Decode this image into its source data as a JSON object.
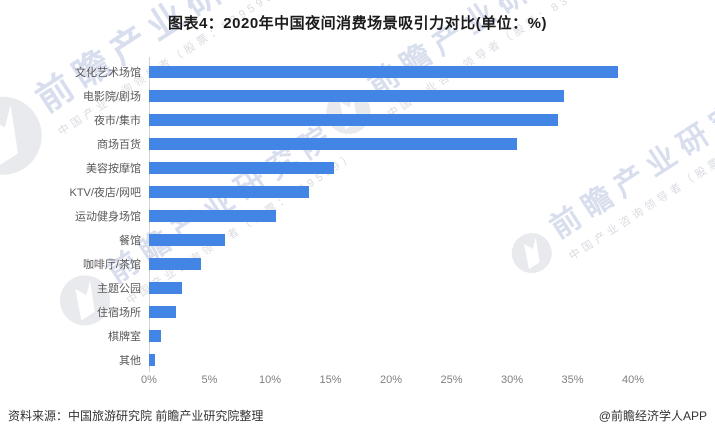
{
  "title": "图表4：2020年中国夜间消费场景吸引力对比(单位：%)",
  "chart_data": {
    "type": "bar",
    "orientation": "horizontal",
    "title": "2020年中国夜间消费场景吸引力对比",
    "unit": "%",
    "categories": [
      "文化艺术场馆",
      "电影院/剧场",
      "夜市/集市",
      "商场百货",
      "美容按摩馆",
      "KTV/夜店/网吧",
      "运动健身场馆",
      "餐馆",
      "咖啡厅/茶馆",
      "主题公园",
      "住宿场所",
      "棋牌室",
      "其他"
    ],
    "values": [
      38.8,
      34.3,
      33.8,
      30.4,
      15.3,
      13.2,
      10.5,
      6.3,
      4.3,
      2.7,
      2.2,
      1.0,
      0.5
    ],
    "xlim": [
      0,
      40
    ],
    "x_ticks": [
      "0%",
      "5%",
      "10%",
      "15%",
      "20%",
      "25%",
      "30%",
      "35%",
      "40%"
    ],
    "bar_color": "#4285E4",
    "grid": false,
    "legend": false
  },
  "footer": {
    "source": "资料来源：中国旅游研究院 前瞻产业研究院整理",
    "credit": "@前瞻经济学人APP"
  },
  "watermark": {
    "brand": "前瞻产业研究院",
    "tagline": "中国产业咨询领导者（股票：839599）"
  }
}
